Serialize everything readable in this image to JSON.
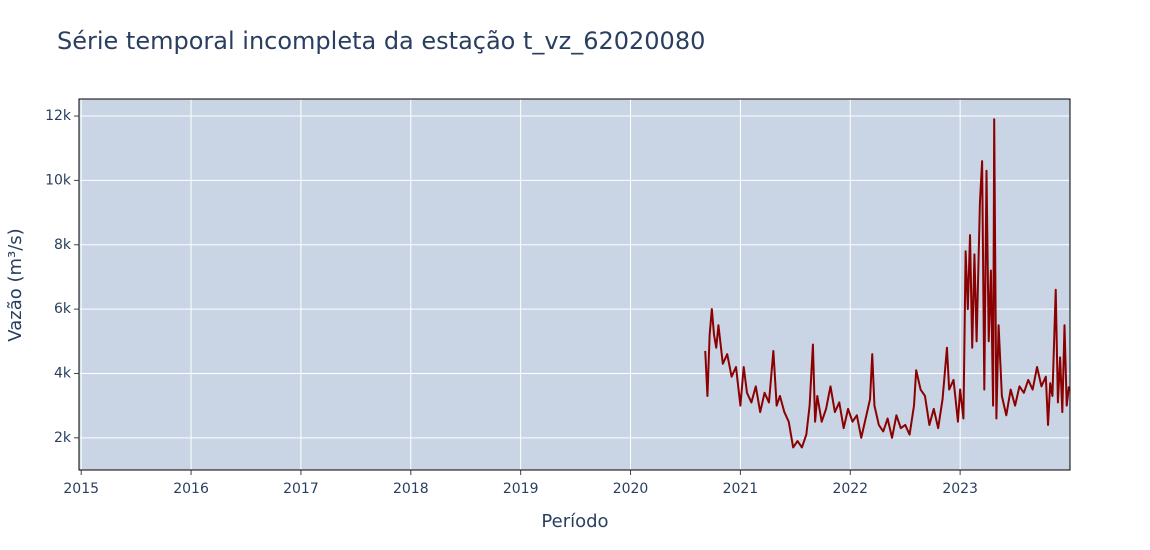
{
  "chart_data": {
    "type": "line",
    "title": "Série temporal incompleta da estação t_vz_62020080",
    "x_label": "Período",
    "y_label": "Vazão (m³/s)",
    "xlim": [
      2014.98,
      2024.0
    ],
    "xticks": [
      2015,
      2016,
      2017,
      2018,
      2019,
      2020,
      2021,
      2022,
      2023
    ],
    "ylim": [
      1000,
      12530
    ],
    "yticks": [
      {
        "value": 2000,
        "label": "2k"
      },
      {
        "value": 4000,
        "label": "4k"
      },
      {
        "value": 6000,
        "label": "6k"
      },
      {
        "value": 8000,
        "label": "8k"
      },
      {
        "value": 10000,
        "label": "10k"
      },
      {
        "value": 12000,
        "label": "12k"
      }
    ],
    "grid": true,
    "background": "#c9d5e4",
    "x": [
      2020.68,
      2020.7,
      2020.72,
      2020.74,
      2020.76,
      2020.78,
      2020.8,
      2020.84,
      2020.88,
      2020.92,
      2020.96,
      2021.0,
      2021.03,
      2021.06,
      2021.1,
      2021.14,
      2021.18,
      2021.22,
      2021.26,
      2021.3,
      2021.33,
      2021.36,
      2021.4,
      2021.44,
      2021.48,
      2021.52,
      2021.56,
      2021.6,
      2021.63,
      2021.66,
      2021.68,
      2021.7,
      2021.74,
      2021.78,
      2021.82,
      2021.86,
      2021.9,
      2021.94,
      2021.98,
      2022.02,
      2022.06,
      2022.1,
      2022.14,
      2022.18,
      2022.2,
      2022.22,
      2022.26,
      2022.3,
      2022.34,
      2022.38,
      2022.42,
      2022.46,
      2022.5,
      2022.54,
      2022.58,
      2022.6,
      2022.64,
      2022.68,
      2022.72,
      2022.76,
      2022.8,
      2022.84,
      2022.88,
      2022.9,
      2022.94,
      2022.98,
      2023.0,
      2023.03,
      2023.05,
      2023.07,
      2023.09,
      2023.11,
      2023.13,
      2023.15,
      2023.18,
      2023.2,
      2023.22,
      2023.24,
      2023.26,
      2023.28,
      2023.3,
      2023.31,
      2023.33,
      2023.35,
      2023.38,
      2023.42,
      2023.46,
      2023.5,
      2023.54,
      2023.58,
      2023.62,
      2023.66,
      2023.7,
      2023.74,
      2023.78,
      2023.8,
      2023.82,
      2023.84,
      2023.87,
      2023.89,
      2023.91,
      2023.93,
      2023.95,
      2023.97,
      2023.99
    ],
    "series": [
      {
        "name": "t_vz_62020080",
        "color": "#8b0000",
        "values": [
          4700,
          3300,
          5200,
          6000,
          5200,
          4800,
          5500,
          4300,
          4600,
          3900,
          4200,
          3000,
          4200,
          3400,
          3100,
          3600,
          2800,
          3400,
          3100,
          4700,
          3000,
          3300,
          2800,
          2500,
          1700,
          1900,
          1700,
          2100,
          3000,
          4900,
          2500,
          3300,
          2500,
          2900,
          3600,
          2800,
          3100,
          2300,
          2900,
          2500,
          2700,
          2000,
          2600,
          3200,
          4600,
          3000,
          2400,
          2200,
          2600,
          2000,
          2700,
          2300,
          2400,
          2100,
          3000,
          4100,
          3500,
          3300,
          2400,
          2900,
          2300,
          3200,
          4800,
          3500,
          3800,
          2500,
          3500,
          2600,
          7800,
          6000,
          8300,
          4800,
          7700,
          5000,
          9300,
          10600,
          3500,
          10300,
          5000,
          7200,
          3000,
          11900,
          2600,
          5500,
          3300,
          2700,
          3500,
          3000,
          3600,
          3400,
          3800,
          3500,
          4200,
          3600,
          3900,
          2400,
          3700,
          3300,
          6600,
          3100,
          4500,
          2800,
          5500,
          3000,
          3600
        ]
      }
    ]
  }
}
